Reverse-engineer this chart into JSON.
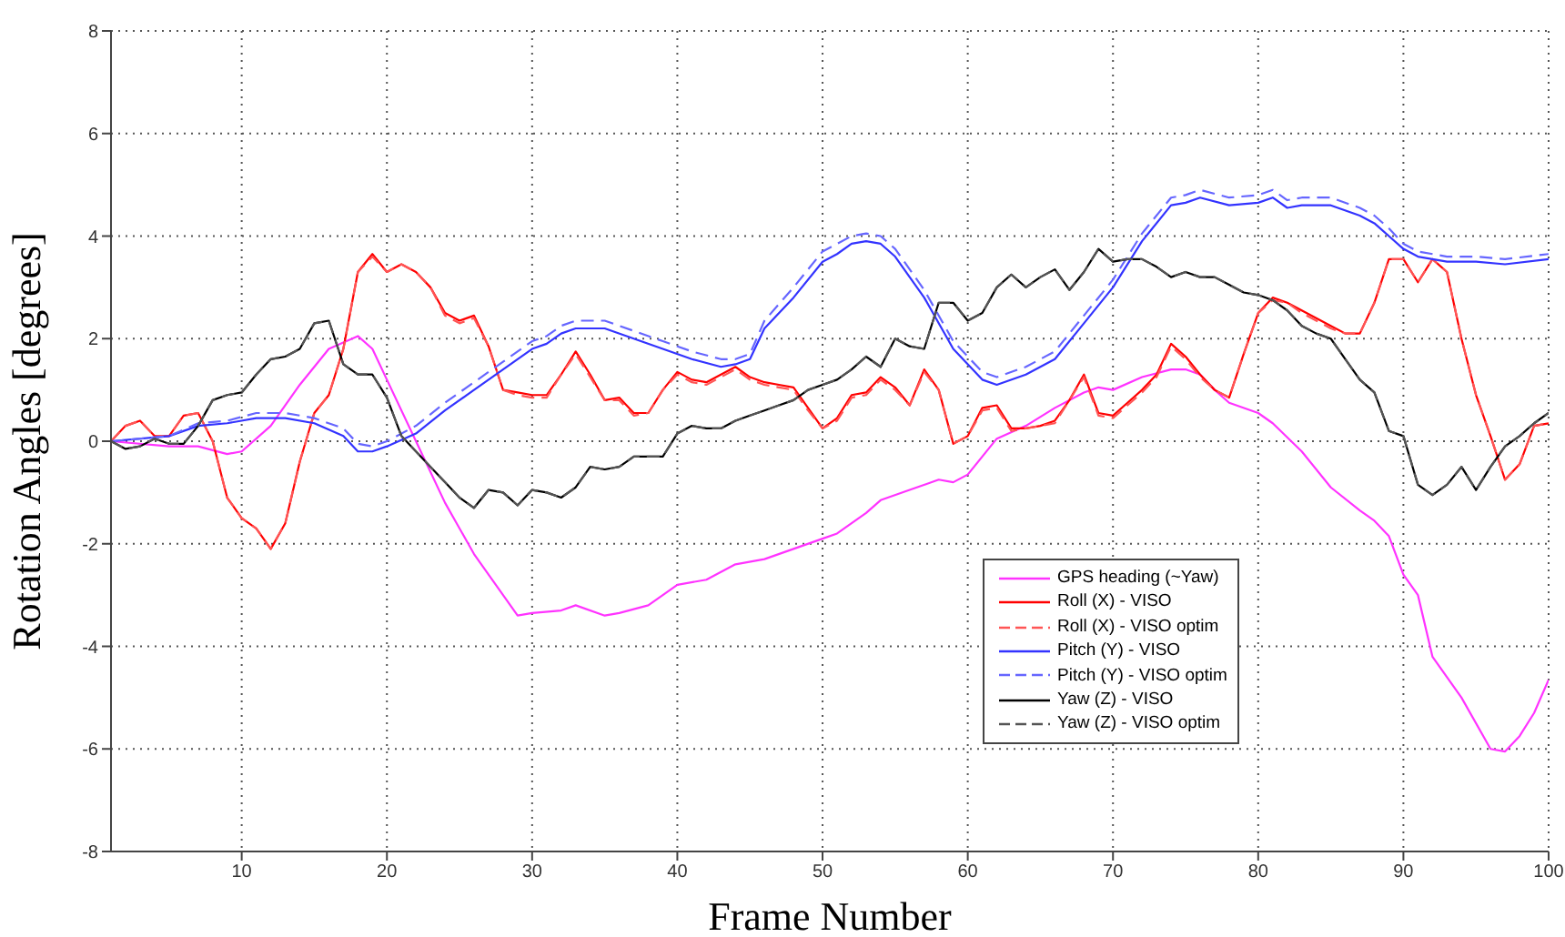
{
  "chart_data": {
    "type": "line",
    "xlabel": "Frame Number",
    "ylabel": "Rotation Angles [degrees]",
    "x": [
      1,
      2,
      3,
      4,
      5,
      6,
      7,
      8,
      9,
      10,
      11,
      12,
      13,
      14,
      15,
      16,
      17,
      18,
      19,
      20,
      21,
      22,
      23,
      24,
      25,
      26,
      27,
      28,
      29,
      30,
      31,
      32,
      33,
      34,
      35,
      36,
      37,
      38,
      39,
      40,
      41,
      42,
      43,
      44,
      45,
      46,
      47,
      48,
      49,
      50,
      51,
      52,
      53,
      54,
      55,
      56,
      57,
      58,
      59,
      60,
      61,
      62,
      63,
      64,
      65,
      66,
      67,
      68,
      69,
      70,
      71,
      72,
      73,
      74,
      75,
      76,
      77,
      78,
      79,
      80,
      81,
      82,
      83,
      84,
      85,
      86,
      87,
      88,
      89,
      90,
      91,
      92,
      93,
      94,
      95,
      96,
      97,
      98,
      99,
      100
    ],
    "series": [
      {
        "name": "GPS heading (~Yaw)",
        "color": "#ff33ff",
        "line_style": "solid",
        "x": [
          1,
          5,
          7,
          9,
          10,
          12,
          14,
          16,
          18,
          19,
          20,
          22,
          24,
          26,
          28,
          29,
          30,
          32,
          33,
          35,
          36,
          38,
          40,
          42,
          44,
          46,
          48,
          50,
          51,
          53,
          54,
          56,
          58,
          59,
          60,
          61,
          62,
          64,
          66,
          68,
          69,
          70,
          72,
          74,
          75,
          76,
          77,
          78,
          80,
          81,
          83,
          85,
          87,
          88,
          89,
          90,
          91,
          92,
          94,
          96,
          97,
          98,
          99,
          100
        ],
        "values": [
          0,
          -0.1,
          -0.1,
          -0.25,
          -0.2,
          0.3,
          1.1,
          1.8,
          2.05,
          1.8,
          1.2,
          0,
          -1.2,
          -2.2,
          -3.0,
          -3.4,
          -3.35,
          -3.3,
          -3.2,
          -3.4,
          -3.35,
          -3.2,
          -2.8,
          -2.7,
          -2.4,
          -2.3,
          -2.1,
          -1.9,
          -1.8,
          -1.4,
          -1.15,
          -0.95,
          -0.75,
          -0.8,
          -0.65,
          -0.3,
          0.05,
          0.3,
          0.65,
          0.95,
          1.05,
          1.0,
          1.25,
          1.4,
          1.4,
          1.3,
          1.0,
          0.75,
          0.55,
          0.35,
          -0.2,
          -0.9,
          -1.35,
          -1.55,
          -1.85,
          -2.6,
          -3.0,
          -4.2,
          -5.0,
          -6.0,
          -6.05,
          -5.75,
          -5.3,
          -4.65
        ]
      },
      {
        "name": "Roll (X) - VISO",
        "color": "#ff0000",
        "line_style": "solid",
        "values": [
          0,
          0.3,
          0.4,
          0.1,
          0.1,
          0.5,
          0.55,
          0,
          -1.1,
          -1.5,
          -1.7,
          -2.1,
          -1.6,
          -0.4,
          0.55,
          0.9,
          1.8,
          3.3,
          3.65,
          3.3,
          3.45,
          3.3,
          3.0,
          2.5,
          2.35,
          2.45,
          1.85,
          1.0,
          0.95,
          0.9,
          0.9,
          1.3,
          1.75,
          1.3,
          0.8,
          0.85,
          0.55,
          0.55,
          1.0,
          1.35,
          1.2,
          1.15,
          1.3,
          1.45,
          1.25,
          1.15,
          1.1,
          1.05,
          0.65,
          0.25,
          0.45,
          0.9,
          0.95,
          1.25,
          1.05,
          0.7,
          1.4,
          1.0,
          -0.05,
          0.1,
          0.65,
          0.7,
          0.25,
          0.25,
          0.3,
          0.4,
          0.8,
          1.3,
          0.55,
          0.5,
          0.75,
          1.0,
          1.3,
          1.9,
          1.65,
          1.3,
          1.0,
          0.85,
          1.7,
          2.5,
          2.8,
          2.7,
          2.55,
          2.4,
          2.25,
          2.1,
          2.1,
          2.7,
          3.55,
          3.55,
          3.1,
          3.55,
          3.3,
          2.0,
          0.9,
          0.1,
          -0.75,
          -0.45,
          0.3,
          0.35
        ]
      },
      {
        "name": "Roll (X) - VISO optim",
        "color": "#ff5555",
        "line_style": "dashed",
        "values": [
          0,
          0.3,
          0.4,
          0.1,
          0.1,
          0.5,
          0.55,
          0,
          -1.1,
          -1.5,
          -1.7,
          -2.1,
          -1.6,
          -0.4,
          0.55,
          0.9,
          1.8,
          3.3,
          3.6,
          3.3,
          3.45,
          3.3,
          3.0,
          2.45,
          2.3,
          2.4,
          1.85,
          1.0,
          0.9,
          0.85,
          0.85,
          1.3,
          1.7,
          1.25,
          0.8,
          0.8,
          0.5,
          0.55,
          1.0,
          1.3,
          1.15,
          1.1,
          1.25,
          1.4,
          1.2,
          1.1,
          1.05,
          1.0,
          0.6,
          0.25,
          0.4,
          0.85,
          0.9,
          1.2,
          1.0,
          0.7,
          1.35,
          1.0,
          -0.05,
          0.1,
          0.6,
          0.65,
          0.2,
          0.25,
          0.3,
          0.35,
          0.8,
          1.25,
          0.5,
          0.45,
          0.7,
          0.95,
          1.25,
          1.85,
          1.6,
          1.25,
          1.0,
          0.85,
          1.7,
          2.5,
          2.75,
          2.7,
          2.5,
          2.35,
          2.2,
          2.1,
          2.1,
          2.7,
          3.55,
          3.55,
          3.1,
          3.55,
          3.3,
          2.0,
          0.9,
          0.1,
          -0.75,
          -0.45,
          0.3,
          0.35
        ]
      },
      {
        "name": "Pitch (Y) - VISO",
        "color": "#3333ff",
        "line_style": "solid",
        "x": [
          1,
          5,
          7,
          9,
          11,
          13,
          15,
          17,
          18,
          19,
          20,
          22,
          24,
          26,
          28,
          30,
          31,
          32,
          33,
          35,
          37,
          39,
          41,
          43,
          44,
          45,
          46,
          48,
          50,
          51,
          52,
          53,
          54,
          55,
          57,
          59,
          61,
          62,
          64,
          66,
          68,
          70,
          72,
          74,
          75,
          76,
          78,
          80,
          81,
          82,
          83,
          85,
          87,
          88,
          89,
          90,
          91,
          93,
          95,
          97,
          100
        ],
        "values": [
          0,
          0.1,
          0.3,
          0.35,
          0.45,
          0.45,
          0.35,
          0.1,
          -0.2,
          -0.2,
          -0.1,
          0.15,
          0.6,
          1.0,
          1.4,
          1.8,
          1.9,
          2.1,
          2.2,
          2.2,
          2.0,
          1.8,
          1.6,
          1.45,
          1.5,
          1.6,
          2.2,
          2.8,
          3.5,
          3.65,
          3.85,
          3.9,
          3.85,
          3.6,
          2.8,
          1.8,
          1.2,
          1.1,
          1.3,
          1.6,
          2.3,
          3.0,
          3.9,
          4.6,
          4.65,
          4.75,
          4.6,
          4.65,
          4.75,
          4.55,
          4.6,
          4.6,
          4.4,
          4.25,
          4.0,
          3.75,
          3.6,
          3.5,
          3.5,
          3.45,
          3.55
        ]
      },
      {
        "name": "Pitch (Y) - VISO optim",
        "color": "#6666ff",
        "line_style": "dashed",
        "x": [
          1,
          5,
          7,
          9,
          11,
          13,
          15,
          17,
          18,
          19,
          20,
          22,
          24,
          26,
          28,
          30,
          31,
          32,
          33,
          35,
          37,
          39,
          41,
          43,
          44,
          45,
          46,
          48,
          50,
          51,
          52,
          53,
          54,
          55,
          57,
          59,
          61,
          62,
          64,
          66,
          68,
          70,
          72,
          74,
          75,
          76,
          78,
          80,
          81,
          82,
          83,
          85,
          87,
          88,
          89,
          90,
          91,
          93,
          95,
          97,
          100
        ],
        "values": [
          0,
          0.1,
          0.35,
          0.4,
          0.55,
          0.55,
          0.45,
          0.25,
          -0.05,
          -0.1,
          0,
          0.3,
          0.75,
          1.15,
          1.55,
          1.95,
          2.05,
          2.25,
          2.35,
          2.35,
          2.15,
          1.95,
          1.75,
          1.6,
          1.6,
          1.7,
          2.35,
          3.0,
          3.7,
          3.85,
          4.0,
          4.05,
          4.0,
          3.75,
          2.95,
          1.95,
          1.35,
          1.25,
          1.45,
          1.75,
          2.45,
          3.15,
          4.05,
          4.75,
          4.8,
          4.9,
          4.75,
          4.8,
          4.9,
          4.7,
          4.75,
          4.75,
          4.55,
          4.4,
          4.15,
          3.85,
          3.7,
          3.6,
          3.6,
          3.55,
          3.65
        ]
      },
      {
        "name": "Yaw (Z) - VISO",
        "color": "#000000",
        "line_style": "solid",
        "values": [
          0,
          -0.15,
          -0.1,
          0.05,
          -0.05,
          -0.05,
          0.3,
          0.8,
          0.9,
          0.95,
          1.3,
          1.6,
          1.65,
          1.8,
          2.3,
          2.35,
          1.5,
          1.3,
          1.3,
          0.85,
          0.1,
          -0.2,
          -0.5,
          -0.8,
          -1.1,
          -1.3,
          -0.95,
          -1.0,
          -1.25,
          -0.95,
          -1.0,
          -1.1,
          -0.9,
          -0.5,
          -0.55,
          -0.5,
          -0.3,
          -0.3,
          -0.3,
          0.15,
          0.3,
          0.25,
          0.25,
          0.4,
          0.5,
          0.6,
          0.7,
          0.8,
          1.0,
          1.1,
          1.2,
          1.4,
          1.65,
          1.45,
          2.0,
          1.85,
          1.8,
          2.7,
          2.7,
          2.35,
          2.5,
          3.0,
          3.25,
          3.0,
          3.2,
          3.35,
          2.95,
          3.3,
          3.75,
          3.5,
          3.55,
          3.55,
          3.4,
          3.2,
          3.3,
          3.2,
          3.2,
          3.05,
          2.9,
          2.85,
          2.75,
          2.55,
          2.25,
          2.1,
          2.0,
          1.6,
          1.2,
          0.95,
          0.2,
          0.1,
          -0.85,
          -1.05,
          -0.85,
          -0.5,
          -0.95,
          -0.5,
          -0.1,
          0.1,
          0.35,
          0.55
        ]
      },
      {
        "name": "Yaw (Z) - VISO optim",
        "color": "#555555",
        "line_style": "dashed",
        "values": [
          0,
          -0.15,
          -0.1,
          0.05,
          -0.05,
          -0.05,
          0.3,
          0.8,
          0.9,
          0.95,
          1.3,
          1.6,
          1.65,
          1.8,
          2.3,
          2.35,
          1.5,
          1.3,
          1.3,
          0.85,
          0.1,
          -0.2,
          -0.5,
          -0.8,
          -1.1,
          -1.3,
          -0.95,
          -1.0,
          -1.25,
          -0.95,
          -1.0,
          -1.1,
          -0.9,
          -0.5,
          -0.55,
          -0.5,
          -0.3,
          -0.3,
          -0.3,
          0.15,
          0.3,
          0.25,
          0.25,
          0.4,
          0.5,
          0.6,
          0.7,
          0.8,
          1.0,
          1.1,
          1.2,
          1.4,
          1.65,
          1.45,
          2.0,
          1.85,
          1.8,
          2.7,
          2.7,
          2.35,
          2.5,
          3.0,
          3.25,
          3.0,
          3.2,
          3.35,
          2.95,
          3.3,
          3.75,
          3.5,
          3.55,
          3.55,
          3.4,
          3.2,
          3.3,
          3.2,
          3.2,
          3.05,
          2.9,
          2.85,
          2.75,
          2.55,
          2.25,
          2.1,
          2.0,
          1.6,
          1.2,
          0.95,
          0.2,
          0.1,
          -0.85,
          -1.05,
          -0.85,
          -0.5,
          -0.95,
          -0.5,
          -0.1,
          0.1,
          0.35,
          0.55
        ]
      }
    ],
    "xlim": [
      1,
      100
    ],
    "xticks": [
      10,
      20,
      30,
      40,
      50,
      60,
      70,
      80,
      90,
      100
    ],
    "ylim": [
      -8,
      8
    ],
    "yticks": [
      -8,
      -6,
      -4,
      -2,
      0,
      2,
      4,
      6,
      8
    ],
    "grid": true,
    "legend": "bottom right"
  }
}
